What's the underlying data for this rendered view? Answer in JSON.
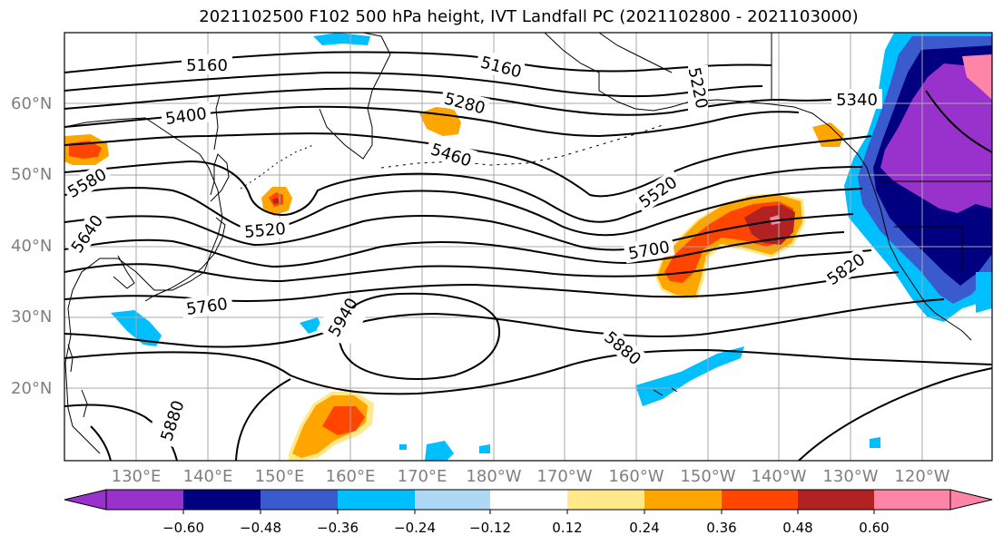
{
  "title": "2021102500 F102 500 hPa height, IVT Landfall PC (2021102800 - 2021103000)",
  "lat_labels": [
    "60°N",
    "50°N",
    "40°N",
    "30°N",
    "20°N"
  ],
  "lon_labels": [
    "130°E",
    "140°E",
    "150°E",
    "160°E",
    "170°E",
    "180°W",
    "170°W",
    "160°W",
    "150°W",
    "140°W",
    "130°W",
    "120°W"
  ],
  "contour_labels": [
    "5160",
    "5160",
    "5280",
    "5220",
    "5340",
    "5400",
    "5460",
    "5520",
    "5520",
    "5580",
    "5640",
    "5700",
    "5760",
    "5820",
    "5880",
    "5880",
    "5940"
  ],
  "colorbar": {
    "ticks": [
      "−0.60",
      "−0.48",
      "−0.36",
      "−0.24",
      "−0.12",
      "0.12",
      "0.24",
      "0.36",
      "0.48",
      "0.60"
    ],
    "colors": [
      "#9932cc",
      "#000080",
      "#3a5acd",
      "#00bfff",
      "#add8f6",
      "#ffffff",
      "#ffe98a",
      "#ffa500",
      "#ff4500",
      "#b22222",
      "#ff85a8"
    ]
  }
}
